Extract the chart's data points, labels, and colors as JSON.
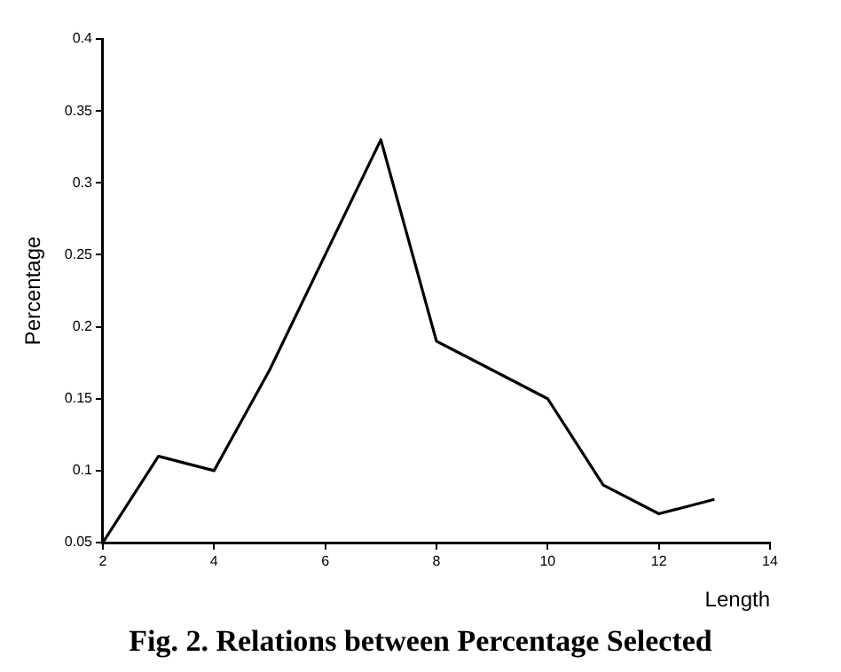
{
  "chart_data": {
    "type": "line",
    "xlabel": "Length",
    "ylabel": "Percentage",
    "annotations": [
      "Fig. 2. Relations between Percentage Selected"
    ],
    "x": [
      2,
      3,
      4,
      5,
      6,
      7,
      8,
      9,
      10,
      11,
      12,
      13
    ],
    "series": [
      {
        "color": "#000000",
        "values": [
          0.05,
          0.11,
          0.1,
          0.17,
          0.25,
          0.33,
          0.19,
          0.17,
          0.15,
          0.09,
          0.07,
          0.08
        ]
      }
    ],
    "xlim": [
      2,
      14
    ],
    "xticks": [
      2,
      4,
      6,
      8,
      10,
      12,
      14
    ],
    "ylim": [
      0.05,
      0.4
    ],
    "yticks": [
      0.05,
      0.1,
      0.15,
      0.2,
      0.25,
      0.3,
      0.35,
      0.4
    ],
    "grid": false,
    "legend": false,
    "marker": "none",
    "line_style": "solid"
  }
}
